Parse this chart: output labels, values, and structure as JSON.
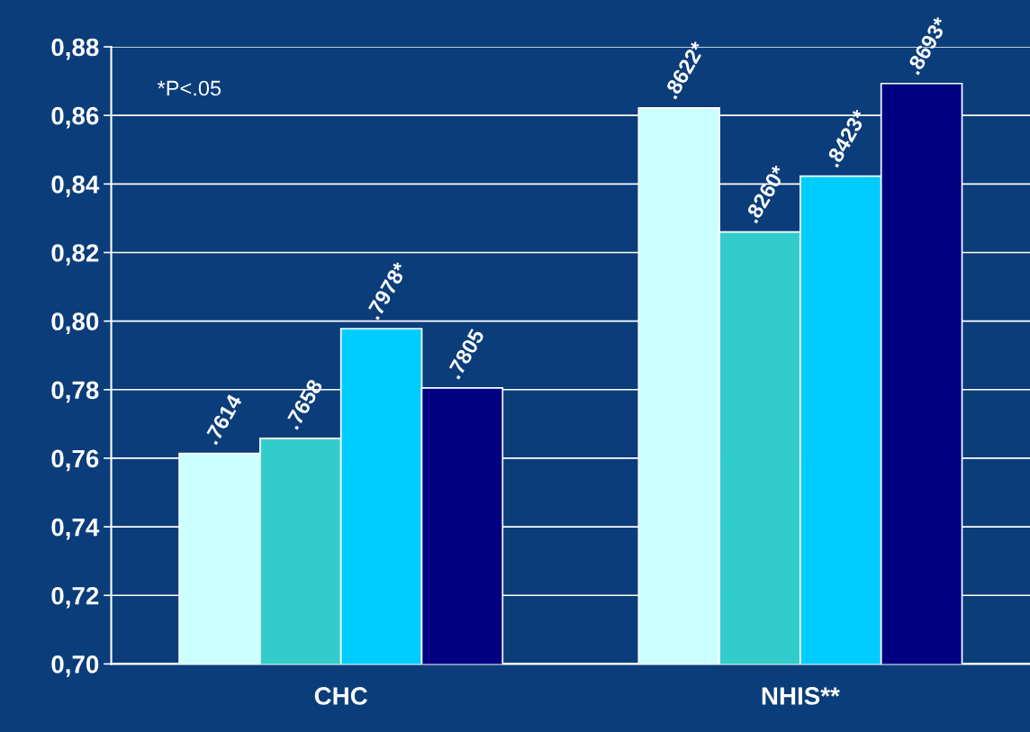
{
  "chart_data": {
    "type": "bar",
    "categories": [
      "CHC",
      "NHIS**"
    ],
    "series": [
      {
        "color": "#ccffff",
        "values": [
          0.7614,
          0.8622
        ],
        "value_labels": [
          ".7614",
          ".8622*"
        ]
      },
      {
        "color": "#33cccc",
        "values": [
          0.7658,
          0.826
        ],
        "value_labels": [
          ".7658",
          ".8260*"
        ]
      },
      {
        "color": "#00ccff",
        "values": [
          0.7978,
          0.8423
        ],
        "value_labels": [
          ".7978*",
          ".8423*"
        ]
      },
      {
        "color": "#000080",
        "values": [
          0.7805,
          0.8693
        ],
        "value_labels": [
          ".7805",
          ".8693*"
        ]
      }
    ],
    "ylim": [
      0.7,
      0.88
    ],
    "yticks": [
      {
        "value": 0.7,
        "label": "0,70"
      },
      {
        "value": 0.72,
        "label": "0,72"
      },
      {
        "value": 0.74,
        "label": "0,74"
      },
      {
        "value": 0.76,
        "label": "0,76"
      },
      {
        "value": 0.78,
        "label": "0,78"
      },
      {
        "value": 0.8,
        "label": "0,80"
      },
      {
        "value": 0.82,
        "label": "0,82"
      },
      {
        "value": 0.84,
        "label": "0,84"
      },
      {
        "value": 0.86,
        "label": "0,86"
      },
      {
        "value": 0.88,
        "label": "0,88"
      }
    ],
    "grid": "y",
    "legend": false,
    "annotations": [
      "*P<.05"
    ]
  }
}
